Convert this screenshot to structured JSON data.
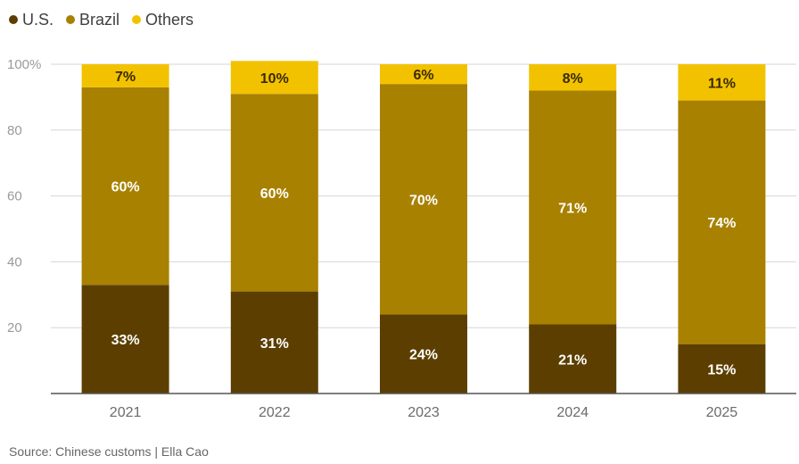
{
  "chart_data": {
    "type": "bar",
    "stacked": true,
    "categories": [
      "2021",
      "2022",
      "2023",
      "2024",
      "2025"
    ],
    "series": [
      {
        "name": "U.S.",
        "color": "#5c3f00",
        "values": [
          33,
          31,
          24,
          21,
          15
        ],
        "labels": [
          "33%",
          "31%",
          "24%",
          "21%",
          "15%"
        ],
        "label_color": "#ffffff"
      },
      {
        "name": "Brazil",
        "color": "#a88100",
        "values": [
          60,
          60,
          70,
          71,
          74
        ],
        "labels": [
          "60%",
          "60%",
          "70%",
          "71%",
          "74%"
        ],
        "label_color": "#ffffff"
      },
      {
        "name": "Others",
        "color": "#f2c200",
        "values": [
          7,
          10,
          6,
          8,
          11
        ],
        "labels": [
          "7%",
          "10%",
          "6%",
          "8%",
          "11%"
        ],
        "label_color": "#3a2a00"
      }
    ],
    "ylim": [
      0,
      100
    ],
    "yticks": [
      20,
      40,
      60,
      80,
      100
    ],
    "ytick_labels": [
      "20",
      "40",
      "60",
      "80",
      "100%"
    ],
    "grid": true,
    "legend_position": "top-left",
    "xlabel": "",
    "ylabel": "",
    "title": ""
  },
  "source": "Source: Chinese customs | Ella Cao"
}
